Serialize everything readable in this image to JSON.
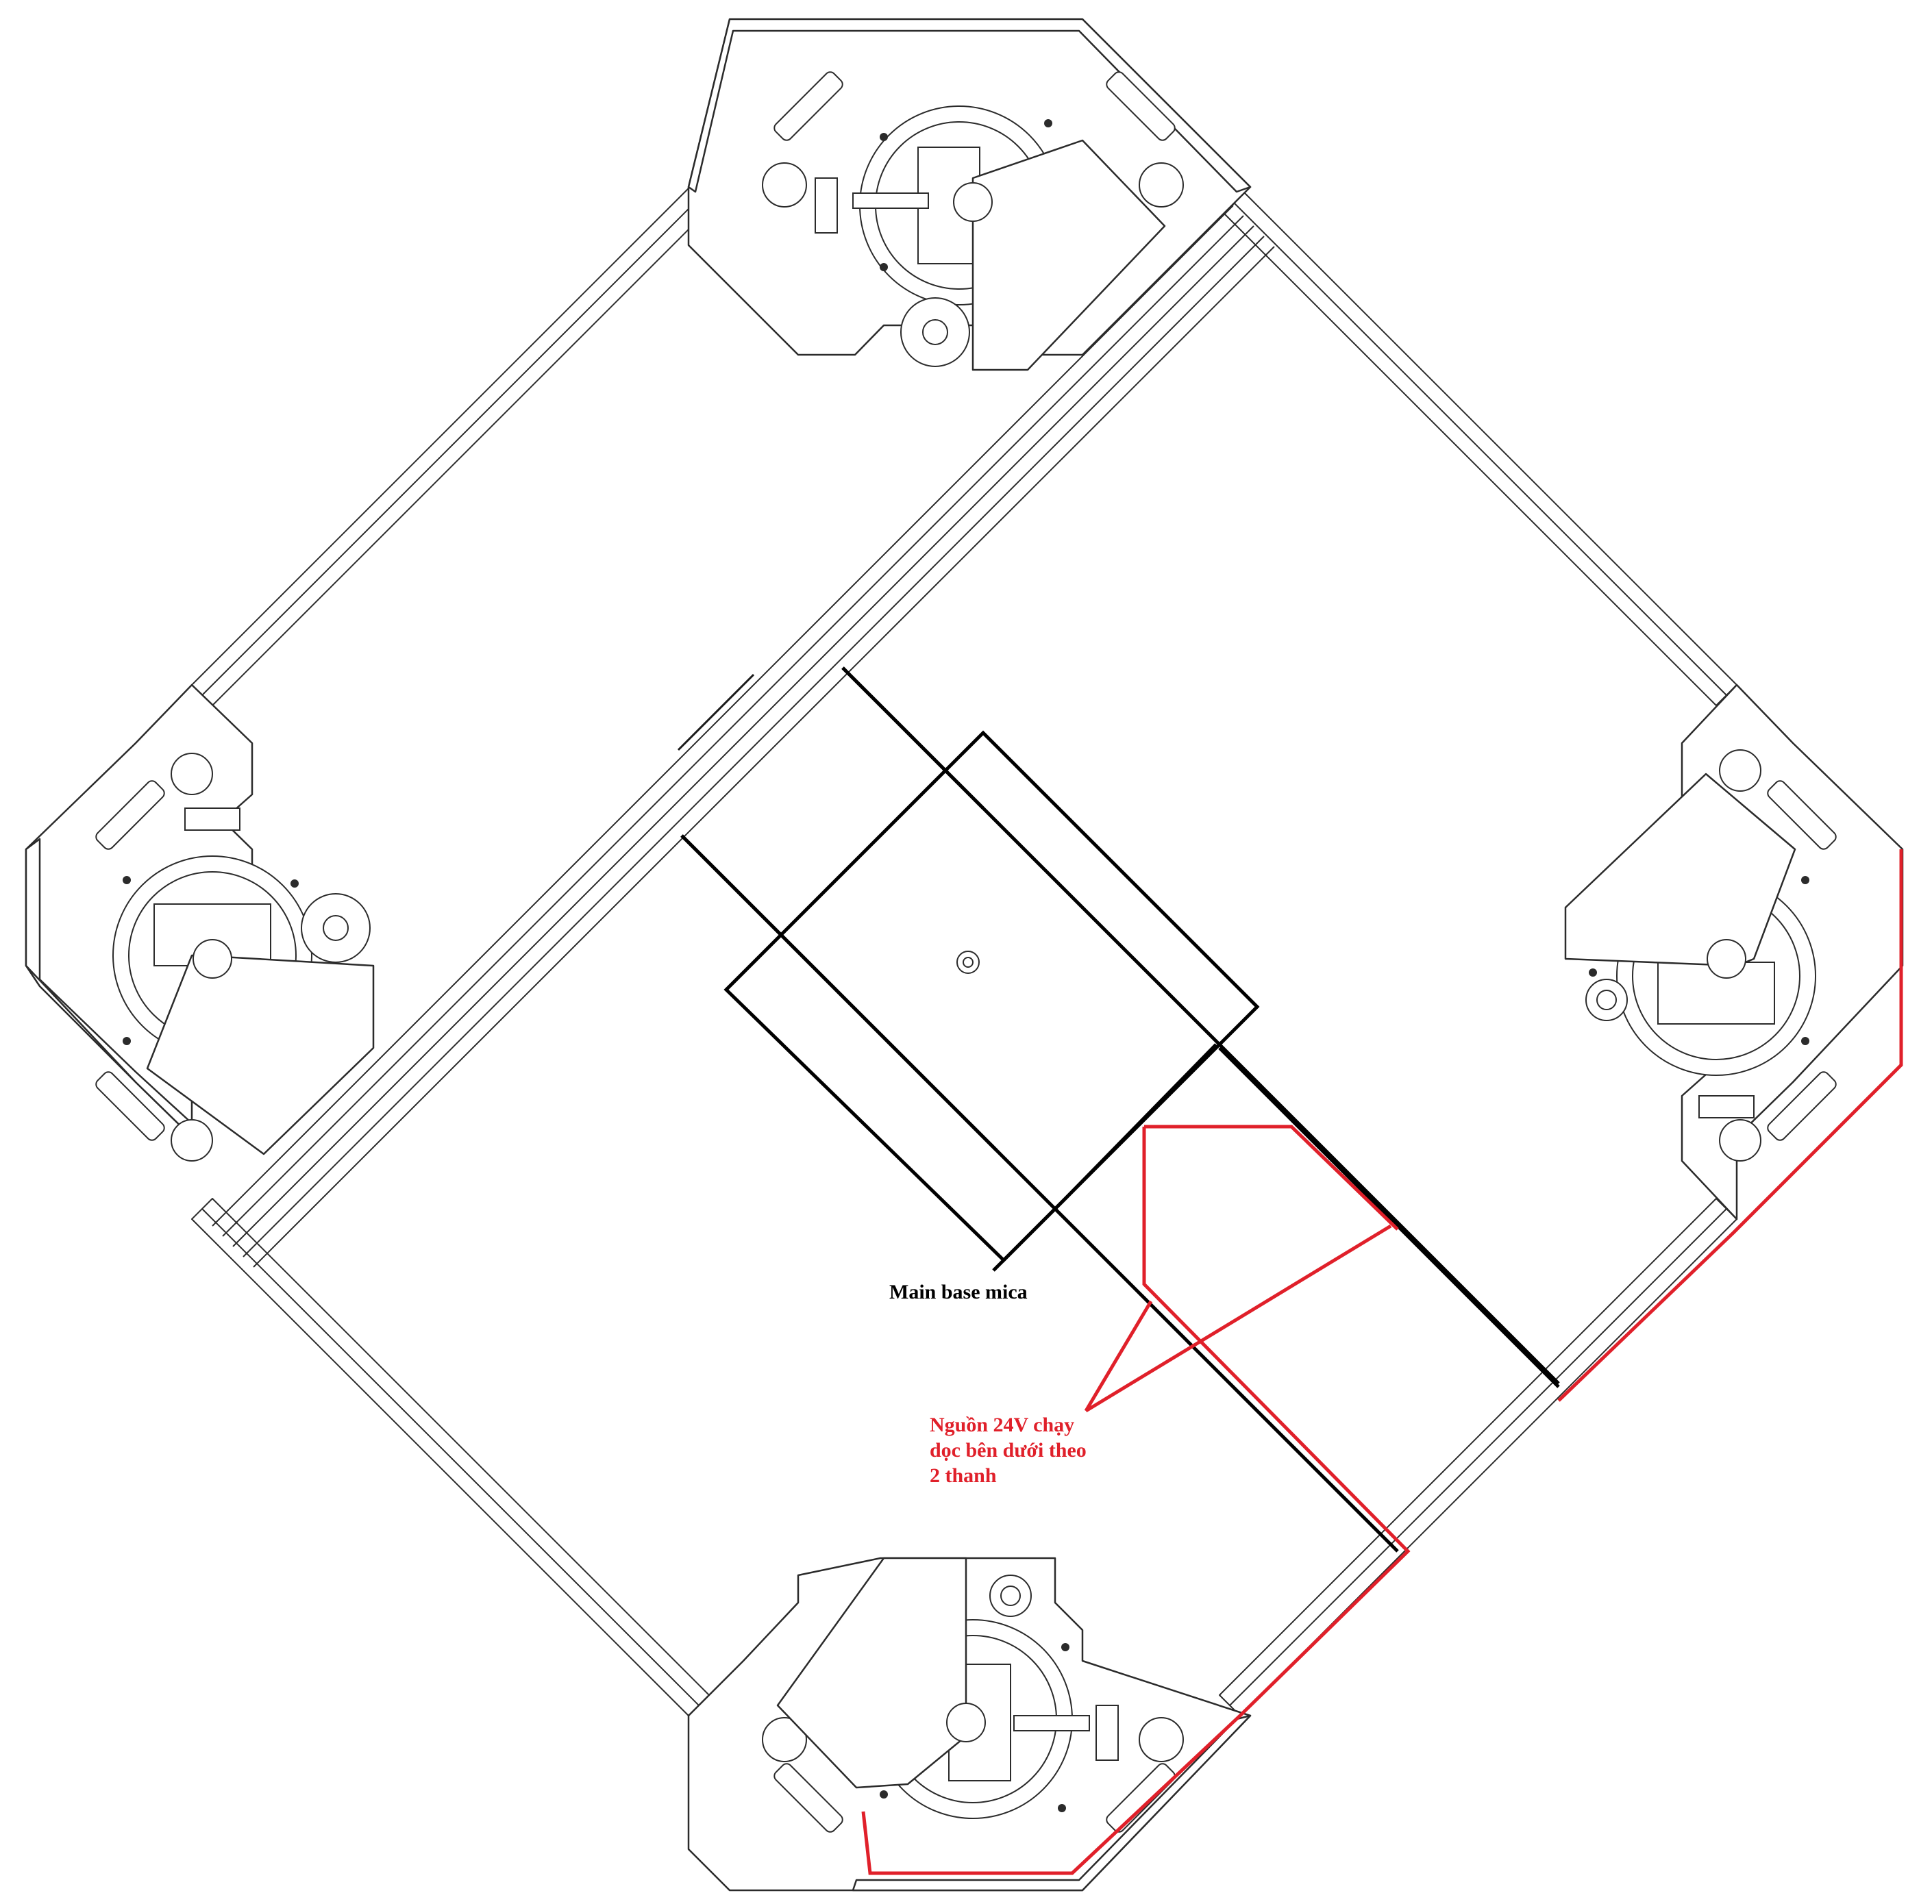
{
  "labels": {
    "main_base": "Main base mica",
    "power_note": "Nguồn 24V chạy\ndọc bên dưới theo\n2 thanh"
  },
  "colors": {
    "power_line": "#e0202a",
    "outline": "#2b2b2b",
    "base": "#000000"
  },
  "components": {
    "wheel_modules": [
      "top",
      "left",
      "right",
      "bottom"
    ],
    "frame_bars": [
      "top-left",
      "top-right",
      "bottom-left",
      "bottom-right",
      "diagonal-rail"
    ]
  }
}
